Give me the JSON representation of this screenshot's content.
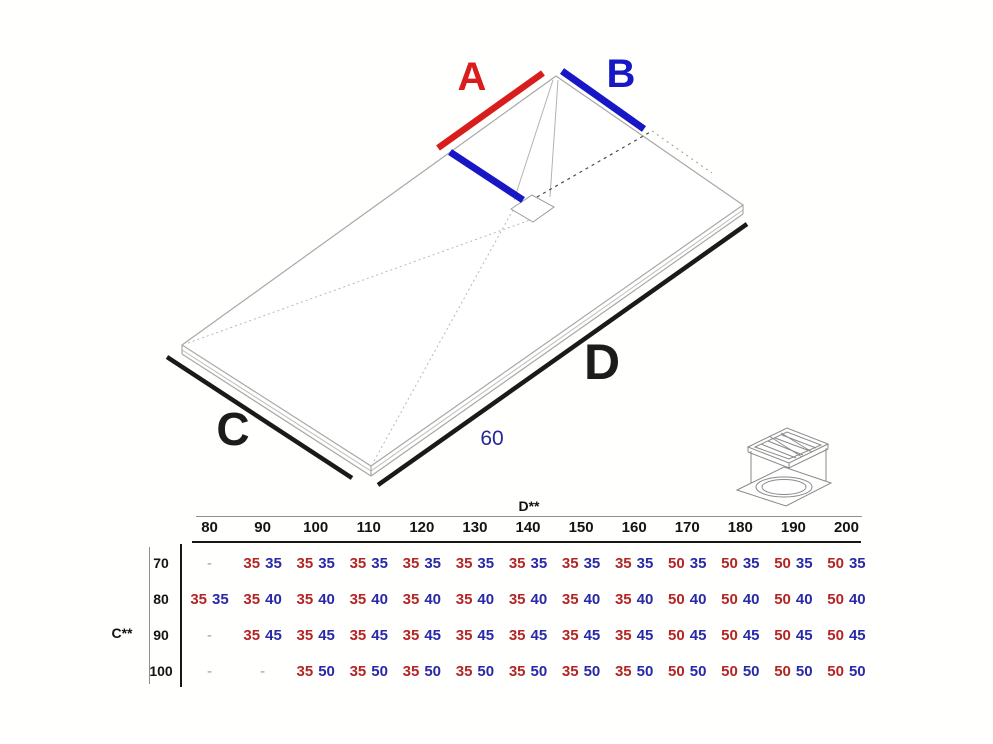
{
  "diagram": {
    "labels": {
      "a": "A",
      "b": "B",
      "c": "C",
      "d": "D",
      "drain_offset": "60"
    },
    "icons": [
      "drain-detail-icon"
    ]
  },
  "colors": {
    "accent_red": "#d81d1d",
    "accent_blue": "#1717c6",
    "table_red": "#b32525",
    "table_blue": "#2828a8",
    "navy_text": "#28289a",
    "measure_black": "#1a1a1a",
    "outline_gray": "#a8a8a8"
  },
  "table": {
    "col_axis_label": "D**",
    "row_axis_label": "C**",
    "empty_cell": "-",
    "columns": [
      "80",
      "90",
      "100",
      "110",
      "120",
      "130",
      "140",
      "150",
      "160",
      "170",
      "180",
      "190",
      "200"
    ],
    "rows": [
      {
        "label": "70",
        "cells": [
          null,
          [
            "35",
            "35"
          ],
          [
            "35",
            "35"
          ],
          [
            "35",
            "35"
          ],
          [
            "35",
            "35"
          ],
          [
            "35",
            "35"
          ],
          [
            "35",
            "35"
          ],
          [
            "35",
            "35"
          ],
          [
            "35",
            "35"
          ],
          [
            "50",
            "35"
          ],
          [
            "50",
            "35"
          ],
          [
            "50",
            "35"
          ],
          [
            "50",
            "35"
          ]
        ]
      },
      {
        "label": "80",
        "cells": [
          [
            "35",
            "35"
          ],
          [
            "35",
            "40"
          ],
          [
            "35",
            "40"
          ],
          [
            "35",
            "40"
          ],
          [
            "35",
            "40"
          ],
          [
            "35",
            "40"
          ],
          [
            "35",
            "40"
          ],
          [
            "35",
            "40"
          ],
          [
            "35",
            "40"
          ],
          [
            "50",
            "40"
          ],
          [
            "50",
            "40"
          ],
          [
            "50",
            "40"
          ],
          [
            "50",
            "40"
          ]
        ]
      },
      {
        "label": "90",
        "cells": [
          null,
          [
            "35",
            "45"
          ],
          [
            "35",
            "45"
          ],
          [
            "35",
            "45"
          ],
          [
            "35",
            "45"
          ],
          [
            "35",
            "45"
          ],
          [
            "35",
            "45"
          ],
          [
            "35",
            "45"
          ],
          [
            "35",
            "45"
          ],
          [
            "50",
            "45"
          ],
          [
            "50",
            "45"
          ],
          [
            "50",
            "45"
          ],
          [
            "50",
            "45"
          ]
        ]
      },
      {
        "label": "100",
        "cells": [
          null,
          null,
          [
            "35",
            "50"
          ],
          [
            "35",
            "50"
          ],
          [
            "35",
            "50"
          ],
          [
            "35",
            "50"
          ],
          [
            "35",
            "50"
          ],
          [
            "35",
            "50"
          ],
          [
            "35",
            "50"
          ],
          [
            "50",
            "50"
          ],
          [
            "50",
            "50"
          ],
          [
            "50",
            "50"
          ],
          [
            "50",
            "50"
          ]
        ]
      }
    ]
  }
}
